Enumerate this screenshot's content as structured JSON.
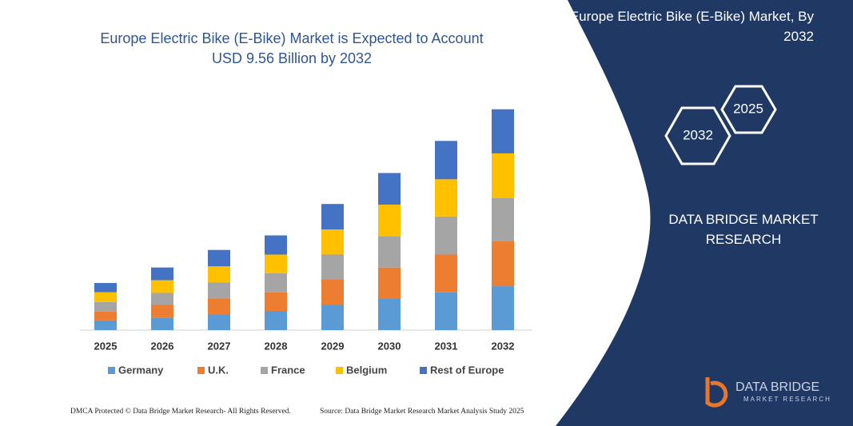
{
  "chart_data": {
    "type": "bar",
    "stacked": true,
    "title": "Europe Electric Bike (E-Bike) Market is Expected to Account USD 9.56 Billion by 2032",
    "categories": [
      "2025",
      "2026",
      "2027",
      "2028",
      "2029",
      "2030",
      "2031",
      "2032"
    ],
    "series": [
      {
        "name": "Germany",
        "color": "#5b9bd5",
        "values": [
          0.42,
          0.54,
          0.69,
          0.83,
          1.09,
          1.35,
          1.63,
          1.9
        ]
      },
      {
        "name": "U.K.",
        "color": "#ed7d31",
        "values": [
          0.38,
          0.55,
          0.69,
          0.8,
          1.09,
          1.36,
          1.64,
          1.94
        ]
      },
      {
        "name": "France",
        "color": "#a5a5a5",
        "values": [
          0.42,
          0.52,
          0.69,
          0.83,
          1.09,
          1.36,
          1.65,
          1.87
        ]
      },
      {
        "name": "Belgium",
        "color": "#ffc000",
        "values": [
          0.42,
          0.55,
          0.69,
          0.81,
          1.09,
          1.36,
          1.61,
          1.94
        ]
      },
      {
        "name": "Rest of Europe",
        "color": "#4472c4",
        "values": [
          0.4,
          0.55,
          0.71,
          0.83,
          1.1,
          1.37,
          1.66,
          1.91
        ]
      }
    ]
  },
  "panel": {
    "title": "Europe Electric Bike (E-Bike) Market, By 2032",
    "hex_start": "2025",
    "hex_end": "2032",
    "company": "DATA BRIDGE MARKET RESEARCH",
    "logo_name": "DATA BRIDGE",
    "logo_sub": "MARKET RESEARCH"
  },
  "footer": {
    "left": "DMCA Protected © Data Bridge Market Research- All Rights Reserved.",
    "right": "Source: Data Bridge Market Research Market Analysis Study 2025"
  }
}
